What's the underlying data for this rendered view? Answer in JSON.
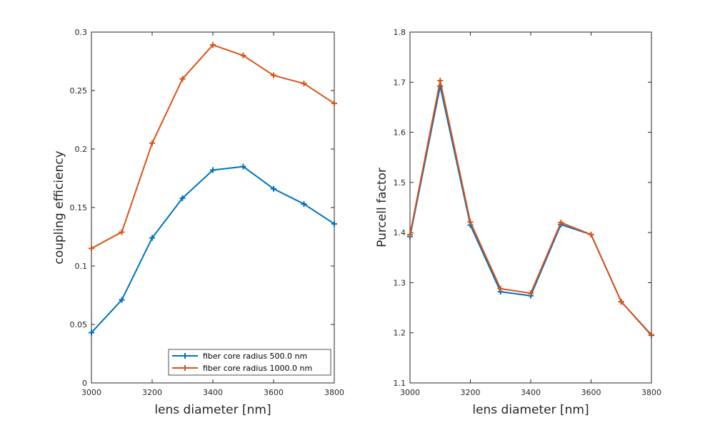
{
  "chart_data": [
    {
      "type": "line",
      "xlabel": "lens diameter [nm]",
      "ylabel": "coupling efficiency",
      "xlim": [
        3000,
        3800
      ],
      "ylim": [
        0,
        0.3
      ],
      "xticks": [
        "3000",
        "3200",
        "3400",
        "3600",
        "3800"
      ],
      "yticks": [
        "0",
        "0.05",
        "0.1",
        "0.15",
        "0.2",
        "0.25",
        "0.3"
      ],
      "x": [
        3000,
        3100,
        3200,
        3300,
        3400,
        3500,
        3600,
        3700,
        3800
      ],
      "legend_position": "bottom-right",
      "series": [
        {
          "name": "fiber core radius 500.0 nm",
          "color": "#0072bd",
          "values": [
            0.043,
            0.071,
            0.124,
            0.158,
            0.182,
            0.185,
            0.166,
            0.153,
            0.136
          ]
        },
        {
          "name": "fiber core radius 1000.0 nm",
          "color": "#d95319",
          "values": [
            0.115,
            0.129,
            0.205,
            0.26,
            0.289,
            0.28,
            0.263,
            0.256,
            0.239
          ]
        }
      ]
    },
    {
      "type": "line",
      "xlabel": "lens diameter [nm]",
      "ylabel": "Purcell factor",
      "xlim": [
        3000,
        3800
      ],
      "ylim": [
        1.1,
        1.8
      ],
      "xticks": [
        "3000",
        "3200",
        "3400",
        "3600",
        "3800"
      ],
      "yticks": [
        "1.1",
        "1.2",
        "1.3",
        "1.4",
        "1.5",
        "1.6",
        "1.7",
        "1.8"
      ],
      "x": [
        3000,
        3100,
        3200,
        3300,
        3400,
        3500,
        3600,
        3700,
        3800
      ],
      "series": [
        {
          "name": "fiber core radius 500.0 nm",
          "color": "#0072bd",
          "values": [
            1.392,
            1.692,
            1.415,
            1.282,
            1.274,
            1.416,
            1.396,
            1.262,
            1.195
          ]
        },
        {
          "name": "fiber core radius 1000.0 nm",
          "color": "#d95319",
          "values": [
            1.396,
            1.703,
            1.421,
            1.288,
            1.279,
            1.42,
            1.396,
            1.262,
            1.196
          ]
        }
      ]
    }
  ]
}
